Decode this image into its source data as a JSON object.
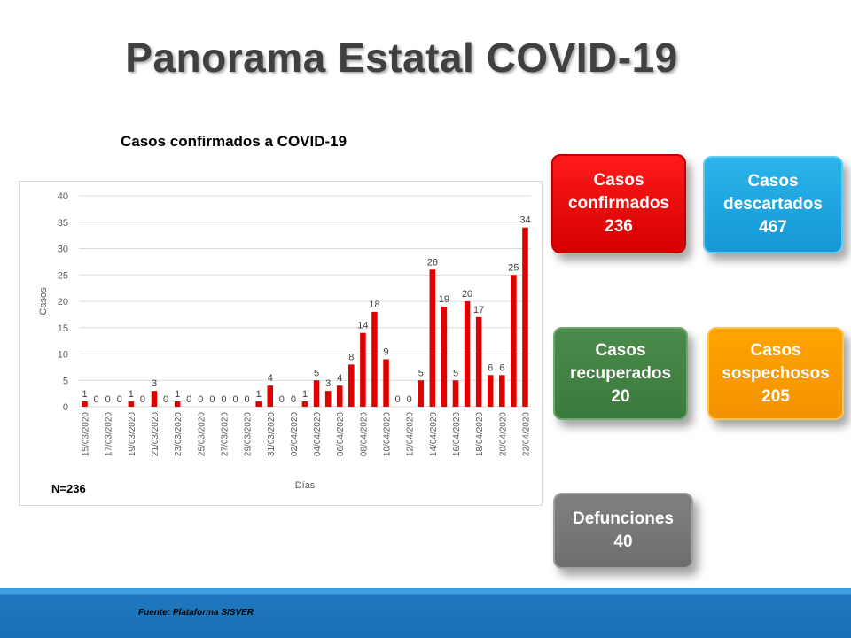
{
  "title": "Panorama Estatal COVID-19",
  "chart_heading": "Casos confirmados a COVID-19",
  "n_label": "N=236",
  "cards": {
    "confirmados": {
      "l1": "Casos",
      "l2": "confirmados",
      "value": "236"
    },
    "descartados": {
      "l1": "Casos",
      "l2": "descartados",
      "value": "467"
    },
    "recuperados": {
      "l1": "Casos",
      "l2": "recuperados",
      "value": "20"
    },
    "sospechosos": {
      "l1": "Casos",
      "l2": "sospechosos",
      "value": "205"
    },
    "defunciones": {
      "l1": "Defunciones",
      "value": "40"
    }
  },
  "footer": "Fuente: Plataforma  SISVER",
  "colors": {
    "bar": "#e00000",
    "grid": "#d9d9d9"
  },
  "chart_data": {
    "type": "bar",
    "title": "",
    "xlabel": "Días",
    "ylabel": "Casos",
    "ylim": [
      0,
      40
    ],
    "yticks": [
      0,
      5,
      10,
      15,
      20,
      25,
      30,
      35,
      40
    ],
    "grid": true,
    "data_labels": true,
    "categories": [
      "15/03/2020",
      "16/03/2020",
      "17/03/2020",
      "18/03/2020",
      "19/03/2020",
      "20/03/2020",
      "21/03/2020",
      "22/03/2020",
      "23/03/2020",
      "24/03/2020",
      "25/03/2020",
      "26/03/2020",
      "27/03/2020",
      "28/03/2020",
      "29/03/2020",
      "30/03/2020",
      "31/03/2020",
      "01/04/2020",
      "02/04/2020",
      "03/04/2020",
      "04/04/2020",
      "05/04/2020",
      "06/04/2020",
      "07/04/2020",
      "08/04/2020",
      "09/04/2020",
      "10/04/2020",
      "11/04/2020",
      "12/04/2020",
      "13/04/2020",
      "14/04/2020",
      "15/04/2020",
      "16/04/2020",
      "17/04/2020",
      "18/04/2020",
      "19/04/2020",
      "20/04/2020",
      "21/04/2020",
      "22/04/2020"
    ],
    "tick_labels": [
      "15/03/2020",
      "17/03/2020",
      "19/03/2020",
      "21/03/2020",
      "23/03/2020",
      "25/03/2020",
      "27/03/2020",
      "29/03/2020",
      "31/03/2020",
      "02/04/2020",
      "04/04/2020",
      "06/04/2020",
      "08/04/2020",
      "10/04/2020",
      "12/04/2020",
      "14/04/2020",
      "16/04/2020",
      "18/04/2020",
      "20/04/2020",
      "22/04/2020"
    ],
    "values": [
      1,
      0,
      0,
      0,
      1,
      0,
      3,
      0,
      1,
      0,
      0,
      0,
      0,
      0,
      0,
      1,
      4,
      0,
      0,
      1,
      5,
      3,
      4,
      8,
      14,
      18,
      9,
      0,
      0,
      5,
      26,
      19,
      5,
      20,
      17,
      6,
      6,
      25,
      34
    ]
  }
}
